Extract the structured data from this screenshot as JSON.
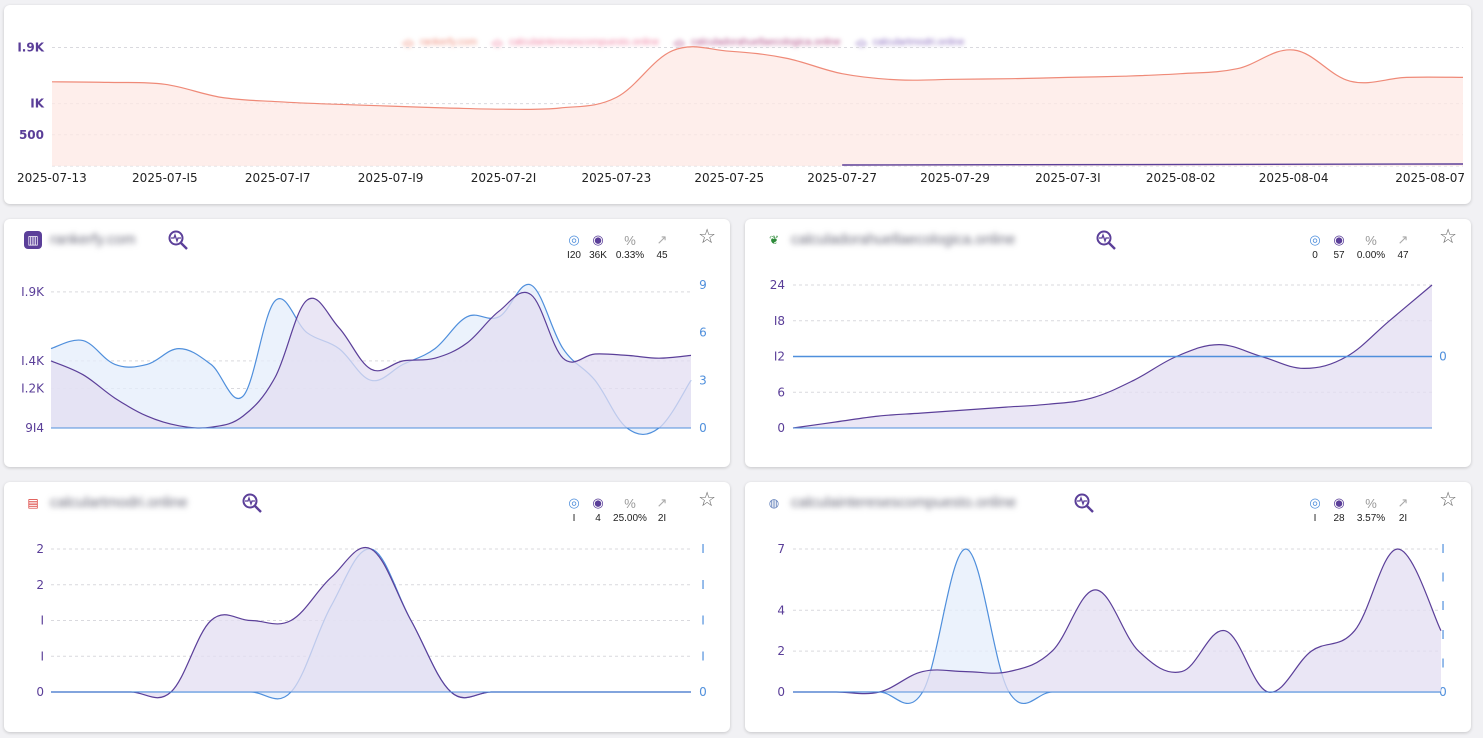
{
  "colors": {
    "salmon": "#ef8a78",
    "salmon_fill": "#fde8e4",
    "purple": "#5b3f99",
    "purple_fill": "#e3def1",
    "blue": "#4f8fdc",
    "blue_fill": "#e4eefb",
    "axis_purple": "#5a3e98",
    "axis_blue": "#4f8fdc",
    "grid": "#d9d9de"
  },
  "top_chart": {
    "legend": [
      "rankerfy.com",
      "calculainteresescompuesto.online",
      "calculadorahuellaecologica.online",
      "calculartmodri.online"
    ],
    "legend_colors": [
      "#ef8a78",
      "#f07fa0",
      "#b3508a",
      "#8a6bbf"
    ]
  },
  "chart_data": [
    {
      "type": "area",
      "x": [
        "2025-07-13",
        "2025-07-14",
        "2025-07-15",
        "2025-07-16",
        "2025-07-17",
        "2025-07-18",
        "2025-07-19",
        "2025-07-20",
        "2025-07-21",
        "2025-07-22",
        "2025-07-23",
        "2025-07-24",
        "2025-07-25",
        "2025-07-26",
        "2025-07-27",
        "2025-07-28",
        "2025-07-29",
        "2025-07-30",
        "2025-07-31",
        "2025-08-01",
        "2025-08-02",
        "2025-08-03",
        "2025-08-04",
        "2025-08-05",
        "2025-08-06",
        "2025-08-07"
      ],
      "xticks": [
        "2025-07-13",
        "2025-07-15",
        "2025-07-17",
        "2025-07-19",
        "2025-07-21",
        "2025-07-23",
        "2025-07-25",
        "2025-07-27",
        "2025-07-29",
        "2025-07-31",
        "2025-08-02",
        "2025-08-04",
        "2025-08-07"
      ],
      "xtick_labels": [
        "2025-07-13",
        "2025-07-I5",
        "2025-07-I7",
        "2025-07-I9",
        "2025-07-2I",
        "2025-07-23",
        "2025-07-25",
        "2025-07-27",
        "2025-07-29",
        "2025-07-3I",
        "2025-08-02",
        "2025-08-04",
        "2025-08-07"
      ],
      "ylim": [
        0,
        2100
      ],
      "yticks": [
        500,
        1000,
        1900
      ],
      "ytick_labels": [
        "500",
        "IK",
        "I.9K"
      ],
      "series": [
        {
          "values": [
            1350,
            1340,
            1310,
            1100,
            1030,
            990,
            960,
            930,
            910,
            930,
            1100,
            1850,
            1840,
            1730,
            1480,
            1380,
            1390,
            1400,
            1420,
            1440,
            1480,
            1560,
            1860,
            1360,
            1420,
            1420
          ]
        },
        {
          "values": [
            null,
            null,
            null,
            null,
            null,
            null,
            null,
            null,
            null,
            null,
            null,
            null,
            null,
            null,
            0,
            0,
            0,
            0,
            0,
            0,
            0,
            0,
            0,
            0,
            0,
            0
          ]
        }
      ]
    },
    {
      "type": "area",
      "site": "rankerfy.com",
      "stats": {
        "clicks": "I20",
        "impressions": "36K",
        "ctr": "0.33%",
        "position": "45"
      },
      "ylim_left": [
        914,
        1950
      ],
      "yticks_left": [
        914,
        1200,
        1400,
        1900
      ],
      "ytick_labels_left": [
        "9I4",
        "I.2K",
        "I.4K",
        "I.9K"
      ],
      "ylim_right": [
        0,
        9
      ],
      "yticks_right": [
        0,
        3,
        6,
        9
      ],
      "ytick_labels_right": [
        "0",
        "3",
        "6",
        "9"
      ],
      "series": [
        {
          "axis": "left",
          "values": [
            1400,
            1300,
            1130,
            1000,
            930,
            920,
            1000,
            1280,
            1840,
            1640,
            1340,
            1400,
            1420,
            1530,
            1760,
            1880,
            1420,
            1450,
            1440,
            1420,
            1440
          ]
        },
        {
          "axis": "right",
          "values": [
            5,
            5.5,
            4,
            4,
            5,
            4,
            2,
            8,
            6,
            5,
            3,
            4,
            5,
            7,
            7,
            9,
            5,
            3,
            0,
            0,
            3
          ]
        }
      ]
    },
    {
      "type": "area",
      "site": "calculadorahuellaecologica.online",
      "stats": {
        "clicks": "0",
        "impressions": "57",
        "ctr": "0.00%",
        "position": "47"
      },
      "ylim_left": [
        0,
        24
      ],
      "yticks_left": [
        0,
        6,
        12,
        18,
        24
      ],
      "ytick_labels_left": [
        "0",
        "6",
        "I2",
        "I8",
        "24"
      ],
      "yticks_right": [
        0
      ],
      "ytick_labels_right": [
        "0"
      ],
      "series": [
        {
          "axis": "left",
          "values": [
            0,
            1,
            2,
            2.5,
            3,
            3.5,
            4,
            5,
            8,
            12,
            14,
            12,
            10,
            12,
            18,
            24
          ]
        },
        {
          "axis": "right",
          "values": [
            0,
            0,
            0,
            0,
            0,
            0,
            0,
            0,
            0,
            0,
            0,
            0,
            0,
            0,
            0,
            0
          ]
        }
      ]
    },
    {
      "type": "area",
      "site": "calculartmodri.online",
      "stats": {
        "clicks": "I",
        "impressions": "4",
        "ctr": "25.00%",
        "position": "2I"
      },
      "ylim_left": [
        0,
        2
      ],
      "yticks_left": [
        0,
        0.5,
        1,
        1.5,
        2
      ],
      "ytick_labels_left": [
        "0",
        "I",
        "I",
        "2",
        "2"
      ],
      "yticks_right": [
        0,
        0.25,
        0.5,
        0.75,
        1
      ],
      "ytick_labels_right": [
        "0",
        "I",
        "I",
        "I",
        "I"
      ],
      "series": [
        {
          "axis": "left",
          "values": [
            0,
            0,
            0,
            0,
            1,
            1,
            1,
            1.6,
            2,
            1,
            0,
            0,
            0,
            0,
            0,
            0,
            0
          ]
        },
        {
          "axis": "right",
          "values": [
            0,
            0,
            0,
            0,
            0,
            0,
            0,
            0.6,
            1,
            0.5,
            0,
            0,
            0,
            0,
            0,
            0,
            0
          ]
        }
      ]
    },
    {
      "type": "area",
      "site": "calculainteresescompuesto.online",
      "stats": {
        "clicks": "I",
        "impressions": "28",
        "ctr": "3.57%",
        "position": "2I"
      },
      "ylim_left": [
        0,
        7
      ],
      "yticks_left": [
        0,
        2,
        4,
        7
      ],
      "ytick_labels_left": [
        "0",
        "2",
        "4",
        "7"
      ],
      "yticks_right": [
        0,
        0.2,
        0.4,
        0.6,
        0.8,
        1
      ],
      "ytick_labels_right": [
        "0",
        "I",
        "I",
        "I",
        "I",
        "I"
      ],
      "series": [
        {
          "axis": "left",
          "values": [
            0,
            0,
            0,
            1,
            1,
            1,
            2,
            5,
            2,
            1,
            3,
            0,
            2,
            3,
            7,
            3
          ]
        },
        {
          "axis": "right",
          "values": [
            0,
            0,
            0,
            0,
            1,
            0,
            0,
            0,
            0,
            0,
            0,
            0,
            0,
            0,
            0,
            0
          ]
        }
      ]
    }
  ]
}
